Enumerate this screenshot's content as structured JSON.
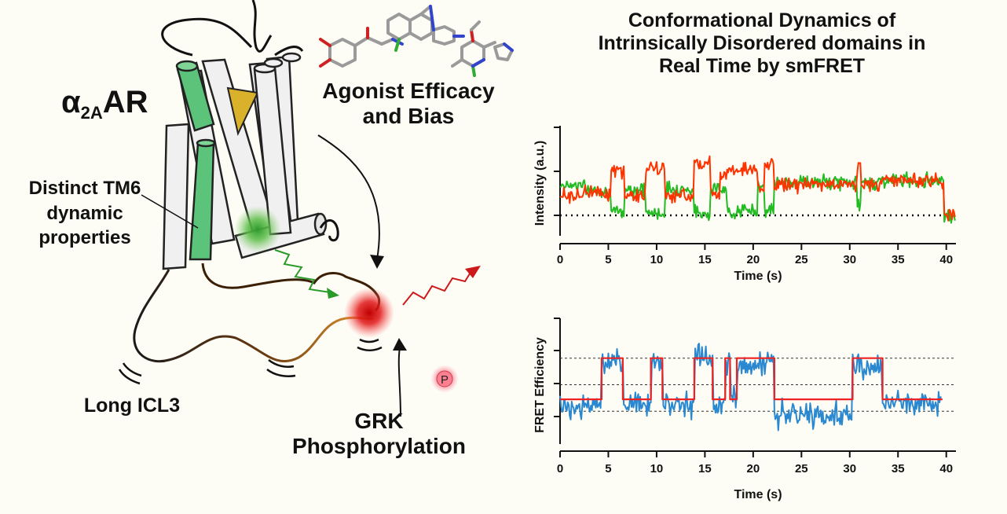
{
  "title": {
    "line1": "Conformational Dynamics of",
    "line2": "Intrinsically Disordered domains in",
    "line3": "Real Time by smFRET"
  },
  "labels": {
    "receptor_alpha": "α",
    "receptor_sub": "2A",
    "receptor_rest": "AR",
    "agonist": "Agonist Efficacy and Bias",
    "tm6": "Distinct TM6 dynamic properties",
    "icl3": "Long ICL3",
    "grk": "GRK Phosphorylation",
    "phospho": "P"
  },
  "colors": {
    "donor": "#22bb22",
    "acceptor": "#ff3300",
    "fret": "#2a88d0",
    "fit": "#ee2222",
    "helix_green": "#5cc47a",
    "ligand_yellow": "#d9b12a"
  },
  "chart_data": [
    {
      "type": "line",
      "xlabel": "Time (s)",
      "ylabel": "Intensity (a.u.)",
      "xlim": [
        0,
        41
      ],
      "xticks": [
        0,
        5,
        10,
        15,
        20,
        25,
        30,
        35,
        40
      ],
      "baseline": 0,
      "series": [
        {
          "color": "#22bb22",
          "states": [
            [
              0,
              0.7
            ],
            [
              2.5,
              0.6
            ],
            [
              4.5,
              0.55
            ],
            [
              5.2,
              0.05
            ],
            [
              6.6,
              0.6
            ],
            [
              8.8,
              0.05
            ],
            [
              10.8,
              0.6
            ],
            [
              13.8,
              0.05
            ],
            [
              15.5,
              0.62
            ],
            [
              16.5,
              0.55
            ],
            [
              17.2,
              0.1
            ],
            [
              20.5,
              0.7
            ],
            [
              21.2,
              0.1
            ],
            [
              22.2,
              0.75
            ],
            [
              30.5,
              0.75
            ],
            [
              30.8,
              0.2
            ],
            [
              31.2,
              0.75
            ],
            [
              33.3,
              0.8
            ],
            [
              39.8,
              0.0
            ],
            [
              41,
              0.0
            ]
          ]
        },
        {
          "color": "#ff3300",
          "states": [
            [
              0,
              0.45
            ],
            [
              2.5,
              0.55
            ],
            [
              4.5,
              0.5
            ],
            [
              5.2,
              1.0
            ],
            [
              6.6,
              0.45
            ],
            [
              8.8,
              1.05
            ],
            [
              10.8,
              0.45
            ],
            [
              13.8,
              1.2
            ],
            [
              15.5,
              0.5
            ],
            [
              16.5,
              0.95
            ],
            [
              17.2,
              1.05
            ],
            [
              20.5,
              0.55
            ],
            [
              21.2,
              1.15
            ],
            [
              22.2,
              0.7
            ],
            [
              30.5,
              0.75
            ],
            [
              30.8,
              1.1
            ],
            [
              31.2,
              0.7
            ],
            [
              33.3,
              0.8
            ],
            [
              39.8,
              0.0
            ],
            [
              41,
              0.0
            ]
          ]
        }
      ]
    },
    {
      "type": "line",
      "xlabel": "Time (s)",
      "ylabel": "FRET Efficiency",
      "xlim": [
        0,
        41
      ],
      "ylim": [
        0,
        1
      ],
      "xticks": [
        0,
        5,
        10,
        15,
        20,
        25,
        30,
        35,
        40
      ],
      "gridlines": [
        0.3,
        0.5,
        0.7
      ],
      "grid_style": "dashed",
      "series": [
        {
          "color": "#2a88d0",
          "states": [
            [
              0,
              0.34
            ],
            [
              4.3,
              0.65
            ],
            [
              6.5,
              0.36
            ],
            [
              9.4,
              0.68
            ],
            [
              10.6,
              0.36
            ],
            [
              13.9,
              0.7
            ],
            [
              15.8,
              0.34
            ],
            [
              17.1,
              0.66
            ],
            [
              17.6,
              0.42
            ],
            [
              18.3,
              0.65
            ],
            [
              20.7,
              0.67
            ],
            [
              22.2,
              0.27
            ],
            [
              30.3,
              0.63
            ],
            [
              33.4,
              0.36
            ],
            [
              39.6,
              0.36
            ]
          ]
        },
        {
          "color": "#ee2222",
          "states": [
            [
              0,
              0.39
            ],
            [
              4.3,
              0.7
            ],
            [
              6.5,
              0.39
            ],
            [
              9.4,
              0.7
            ],
            [
              10.6,
              0.39
            ],
            [
              13.9,
              0.7
            ],
            [
              15.8,
              0.39
            ],
            [
              17.1,
              0.7
            ],
            [
              17.6,
              0.39
            ],
            [
              18.3,
              0.7
            ],
            [
              20.7,
              0.7
            ],
            [
              22.2,
              0.39
            ],
            [
              30.3,
              0.7
            ],
            [
              33.4,
              0.39
            ],
            [
              39.6,
              0.39
            ]
          ]
        }
      ]
    }
  ]
}
